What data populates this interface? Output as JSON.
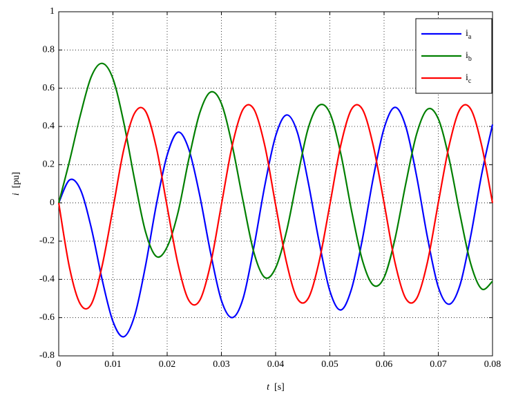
{
  "chart_data": {
    "type": "line",
    "xlabel": "t [s]",
    "ylabel": "i [pu]",
    "x": [
      0,
      0.002,
      0.004,
      0.006,
      0.008,
      0.01,
      0.012,
      0.014,
      0.016,
      0.018,
      0.02,
      0.022,
      0.024,
      0.026,
      0.028,
      0.03,
      0.032,
      0.034,
      0.036,
      0.038,
      0.04,
      0.042,
      0.044,
      0.046,
      0.048,
      0.05,
      0.052,
      0.054,
      0.056,
      0.058,
      0.06,
      0.062,
      0.064,
      0.066,
      0.068,
      0.07,
      0.072,
      0.074,
      0.076,
      0.078,
      0.08
    ],
    "series": [
      {
        "name": "ia",
        "color": "#0000ff",
        "values": [
          0,
          0.12,
          0.07,
          -0.13,
          -0.4,
          -0.62,
          -0.7,
          -0.59,
          -0.33,
          -0.01,
          0.25,
          0.37,
          0.28,
          0.04,
          -0.26,
          -0.51,
          -0.6,
          -0.5,
          -0.23,
          0.09,
          0.35,
          0.46,
          0.37,
          0.11,
          -0.2,
          -0.46,
          -0.56,
          -0.45,
          -0.19,
          0.13,
          0.39,
          0.5,
          0.4,
          0.14,
          -0.18,
          -0.44,
          -0.53,
          -0.43,
          -0.17,
          0.15,
          0.41
        ]
      },
      {
        "name": "ib",
        "color": "#007f00",
        "values": [
          0,
          0.22,
          0.46,
          0.66,
          0.73,
          0.65,
          0.42,
          0.12,
          -0.15,
          -0.28,
          -0.23,
          -0.05,
          0.23,
          0.47,
          0.58,
          0.52,
          0.3,
          0.01,
          -0.26,
          -0.39,
          -0.34,
          -0.15,
          0.13,
          0.39,
          0.51,
          0.47,
          0.26,
          -0.04,
          -0.3,
          -0.43,
          -0.39,
          -0.19,
          0.1,
          0.36,
          0.49,
          0.44,
          0.23,
          -0.06,
          -0.32,
          -0.45,
          -0.41
        ]
      },
      {
        "name": "ic",
        "color": "#ff0000",
        "values": [
          0,
          -0.34,
          -0.53,
          -0.53,
          -0.33,
          -0.03,
          0.28,
          0.47,
          0.48,
          0.29,
          -0.02,
          -0.32,
          -0.51,
          -0.51,
          -0.32,
          -0.01,
          0.3,
          0.49,
          0.49,
          0.3,
          -0.01,
          -0.31,
          -0.5,
          -0.5,
          -0.31,
          -0.01,
          0.3,
          0.49,
          0.49,
          0.3,
          0,
          -0.31,
          -0.5,
          -0.5,
          -0.31,
          0,
          0.3,
          0.49,
          0.49,
          0.3,
          0
        ]
      }
    ],
    "xlim": [
      0,
      0.08
    ],
    "xticks": [
      0,
      0.01,
      0.02,
      0.03,
      0.04,
      0.05,
      0.06,
      0.07,
      0.08
    ],
    "ylim": [
      -0.8,
      1
    ],
    "yticks": [
      -0.8,
      -0.6,
      -0.4,
      -0.2,
      0,
      0.2,
      0.4,
      0.6,
      0.8,
      1
    ],
    "grid": true,
    "legend": "upper right"
  }
}
